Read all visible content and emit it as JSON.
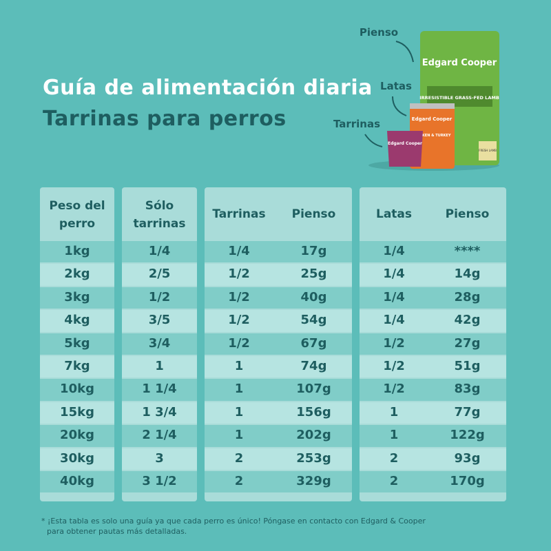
{
  "header": {
    "title": "Guía de alimentación diaria",
    "subtitle": "Tarrinas para perros"
  },
  "products": {
    "labels": [
      "Pienso",
      "Latas",
      "Tarrinas"
    ],
    "brand": "Edgard Cooper",
    "bag_text": "IRRESISTIBLE GRASS-FED LAMB",
    "can_text": "CHICKEN & TURKEY",
    "bag_badge": "FRESH LAMB"
  },
  "table": {
    "headers": [
      "Peso del perro",
      "Sólo tarrinas",
      "Tarrinas",
      "Pienso",
      "Latas",
      "Pienso"
    ],
    "rows": [
      [
        "1kg",
        "1/4",
        "1/4",
        "17g",
        "1/4",
        "****"
      ],
      [
        "2kg",
        "2/5",
        "1/2",
        "25g",
        "1/4",
        "14g"
      ],
      [
        "3kg",
        "1/2",
        "1/2",
        "40g",
        "1/4",
        "28g"
      ],
      [
        "4kg",
        "3/5",
        "1/2",
        "54g",
        "1/4",
        "42g"
      ],
      [
        "5kg",
        "3/4",
        "1/2",
        "67g",
        "1/2",
        "27g"
      ],
      [
        "7kg",
        "1",
        "1",
        "74g",
        "1/2",
        "51g"
      ],
      [
        "10kg",
        "1 1/4",
        "1",
        "107g",
        "1/2",
        "83g"
      ],
      [
        "15kg",
        "1 3/4",
        "1",
        "156g",
        "1",
        "77g"
      ],
      [
        "20kg",
        "2 1/4",
        "1",
        "202g",
        "1",
        "122g"
      ],
      [
        "30kg",
        "3",
        "2",
        "253g",
        "2",
        "93g"
      ],
      [
        "40kg",
        "3 1/2",
        "2",
        "329g",
        "2",
        "170g"
      ]
    ]
  },
  "footnote": [
    "* ¡Esta tabla es solo una guía ya que cada perro es único! Póngase en contacto con Edgard & Cooper",
    "para obtener pautas más detalladas."
  ]
}
